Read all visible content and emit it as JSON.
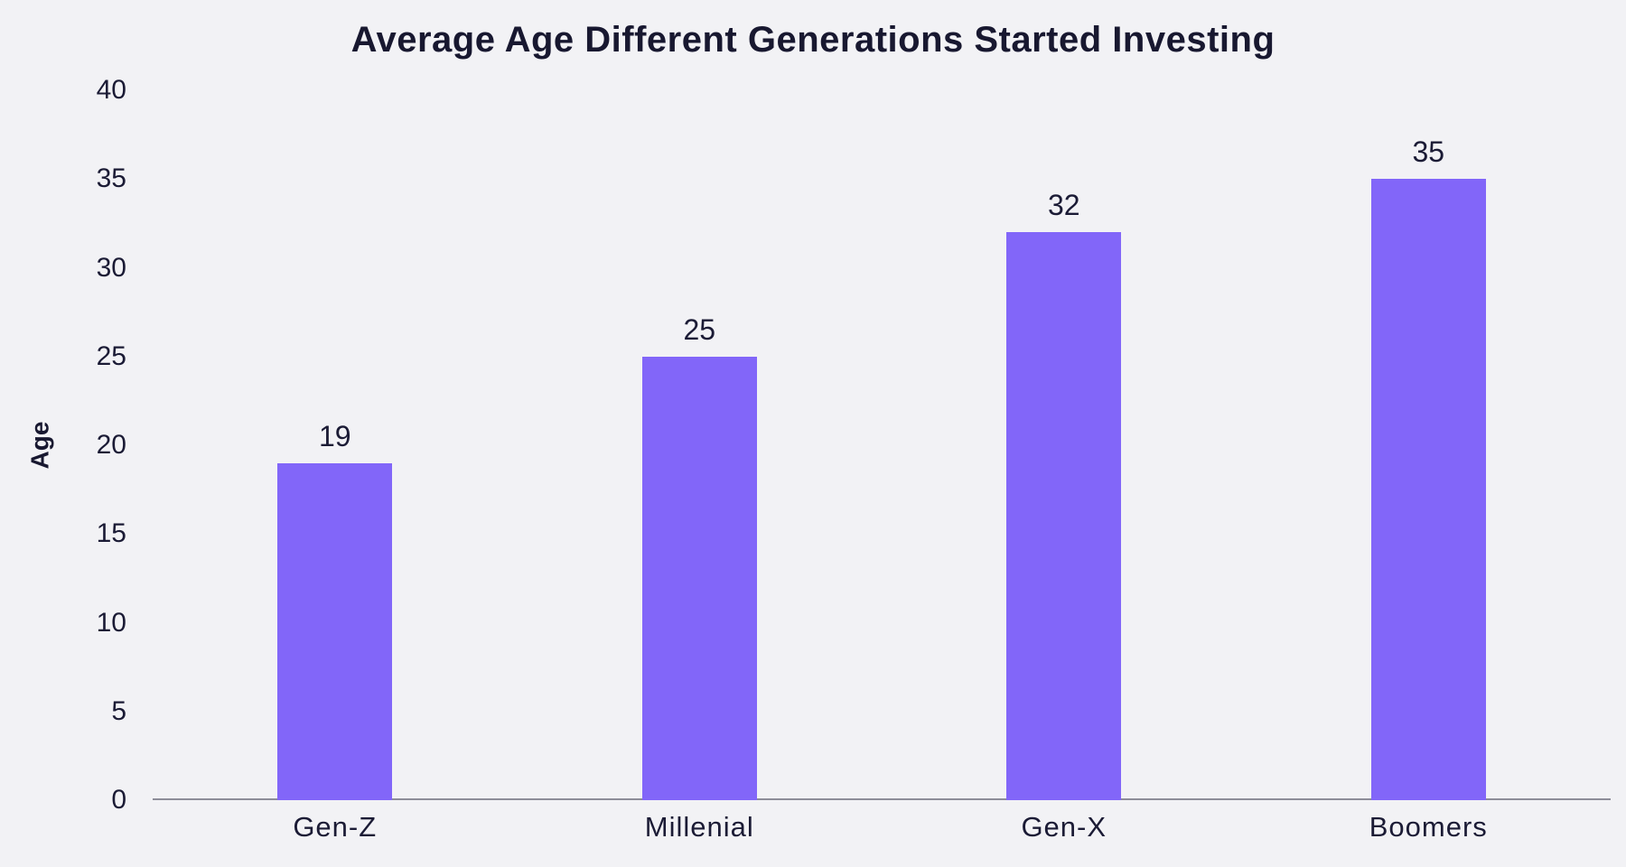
{
  "chart_data": {
    "type": "bar",
    "title": "Average Age Different Generations Started Investing",
    "categories": [
      "Gen-Z",
      "Millenial",
      "Gen-X",
      "Boomers"
    ],
    "values": [
      19,
      25,
      32,
      35
    ],
    "xlabel": "",
    "ylabel": "Age",
    "ylim": [
      0,
      40
    ],
    "yticks": [
      0,
      5,
      10,
      15,
      20,
      25,
      30,
      35,
      40
    ],
    "grid": false,
    "legend": false,
    "value_labels_shown": true,
    "bar_color": "#8266F9",
    "text_color": "#1B1B35",
    "title_color": "#181830",
    "axis_line_color": "#8D8D99",
    "background_color": "#F2F2F5"
  }
}
